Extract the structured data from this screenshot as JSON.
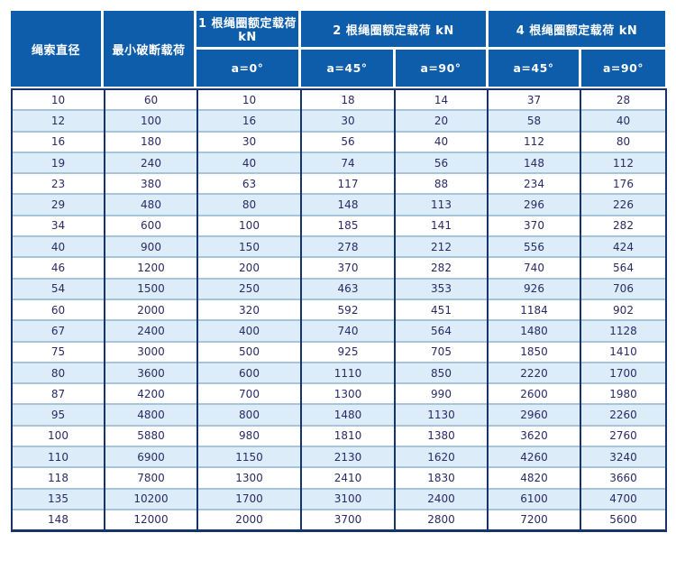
{
  "colors": {
    "header_bg": "#0d5dab",
    "header_text": "#ffffff",
    "border_dark_navy": "#16356d",
    "row_separator": "#a6c4da",
    "stripe_bg": "#dcecf8",
    "cell_text": "#2a2a66"
  },
  "chart_data": {
    "type": "table",
    "title": "",
    "header": {
      "col_rope_diameter": "绳索直径",
      "col_min_breaking_load": "最小破断载荷",
      "group_1_loop": "1 根绳圈额定载荷 kN",
      "group_2_loop": "2 根绳圈额定载荷 kN",
      "group_4_loop": "4 根绳圈额定载荷 kN",
      "sub_a0": "a=0°",
      "sub_a45": "a=45°",
      "sub_a90": "a=90°"
    },
    "columns": [
      "绳索直径",
      "最小破断载荷",
      "1根绳圈额定载荷kN a=0°",
      "2根绳圈额定载荷kN a=45°",
      "2根绳圈额定载荷kN a=90°",
      "4根绳圈额定载荷kN a=45°",
      "4根绳圈额定载荷kN a=90°"
    ],
    "rows": [
      [
        10,
        60,
        10,
        18,
        14,
        37,
        28
      ],
      [
        12,
        100,
        16,
        30,
        20,
        58,
        40
      ],
      [
        16,
        180,
        30,
        56,
        40,
        112,
        80
      ],
      [
        19,
        240,
        40,
        74,
        56,
        148,
        112
      ],
      [
        23,
        380,
        63,
        117,
        88,
        234,
        176
      ],
      [
        29,
        480,
        80,
        148,
        113,
        296,
        226
      ],
      [
        34,
        600,
        100,
        185,
        141,
        370,
        282
      ],
      [
        40,
        900,
        150,
        278,
        212,
        556,
        424
      ],
      [
        46,
        1200,
        200,
        370,
        282,
        740,
        564
      ],
      [
        54,
        1500,
        250,
        463,
        353,
        926,
        706
      ],
      [
        60,
        2000,
        320,
        592,
        451,
        1184,
        902
      ],
      [
        67,
        2400,
        400,
        740,
        564,
        1480,
        1128
      ],
      [
        75,
        3000,
        500,
        925,
        705,
        1850,
        1410
      ],
      [
        80,
        3600,
        600,
        1110,
        850,
        2220,
        1700
      ],
      [
        87,
        4200,
        700,
        1300,
        990,
        2600,
        1980
      ],
      [
        95,
        4800,
        800,
        1480,
        1130,
        2960,
        2260
      ],
      [
        100,
        5880,
        980,
        1810,
        1380,
        3620,
        2760
      ],
      [
        110,
        6900,
        1150,
        2130,
        1620,
        4260,
        3240
      ],
      [
        118,
        7800,
        1300,
        2410,
        1830,
        4820,
        3660
      ],
      [
        135,
        10200,
        1700,
        3100,
        2400,
        6100,
        4700
      ],
      [
        148,
        12000,
        2000,
        3700,
        2800,
        7200,
        5600
      ]
    ]
  }
}
